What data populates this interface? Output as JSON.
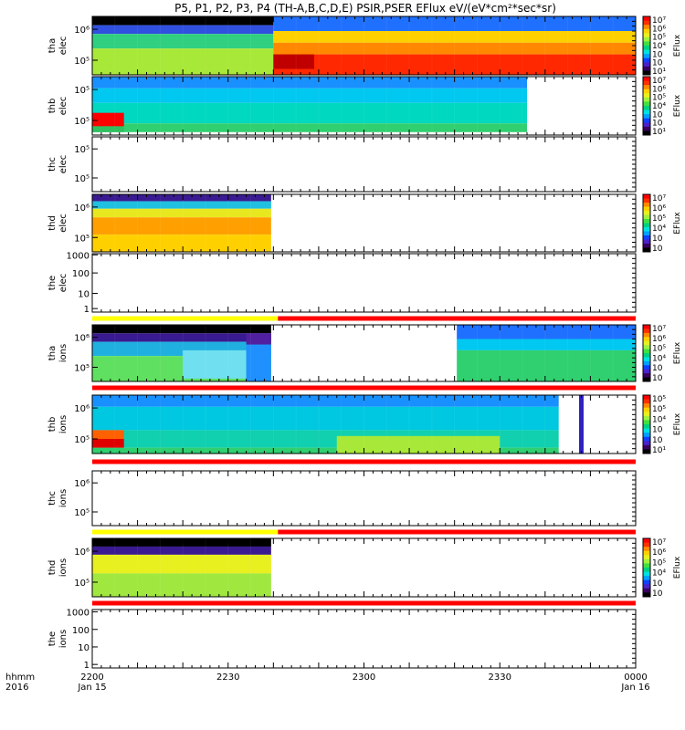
{
  "page": {
    "title_html": "P5, P1, P2, P3, P4 (TH-A,B,C,D,E) PSIR,PSER EFlux eV/(eV*cm²*sec*sr)"
  },
  "time_axis": {
    "label_line1": "hhmm",
    "label_line2": "2016",
    "ticks": [
      {
        "t": 0,
        "label": "2200",
        "sub": "Jan 15"
      },
      {
        "t": 30,
        "label": "2230",
        "sub": ""
      },
      {
        "t": 60,
        "label": "2300",
        "sub": ""
      },
      {
        "t": 90,
        "label": "2330",
        "sub": ""
      },
      {
        "t": 120,
        "label": "0000",
        "sub": "Jan 16"
      }
    ],
    "range_minutes": [
      0,
      120
    ]
  },
  "colorbar": {
    "label": "EFlux",
    "colors": [
      "#000000",
      "#3a0060",
      "#4a22c8",
      "#1040ff",
      "#00a0ff",
      "#00e0e0",
      "#00d080",
      "#40e040",
      "#a0f040",
      "#e8f020",
      "#ffd000",
      "#ff8800",
      "#ff3000",
      "#ff0000"
    ]
  },
  "chart_data": [
    {
      "type": "heatmap",
      "panel": "tha-elec",
      "ylabel": [
        "tha",
        "elec"
      ],
      "yticks": [
        "10⁶",
        "10⁵"
      ],
      "colorbar_ticks": [
        "10⁷",
        "10⁶",
        "10⁵",
        "10⁴",
        "10⁳",
        "10⁲",
        "10¹"
      ],
      "blocks": [
        {
          "t0": 0,
          "t1": 40,
          "f0": 0.0,
          "f1": 0.15,
          "c": "#000000"
        },
        {
          "t0": 0,
          "t1": 40,
          "f0": 0.15,
          "f1": 0.3,
          "c": "#3050e0"
        },
        {
          "t0": 0,
          "t1": 40,
          "f0": 0.3,
          "f1": 0.55,
          "c": "#30d080"
        },
        {
          "t0": 0,
          "t1": 40,
          "f0": 0.55,
          "f1": 1.0,
          "c": "#a8e838"
        },
        {
          "t0": 40,
          "t1": 120,
          "f0": 0.0,
          "f1": 0.25,
          "c": "#2070ff"
        },
        {
          "t0": 40,
          "t1": 120,
          "f0": 0.25,
          "f1": 0.45,
          "c": "#ffd000"
        },
        {
          "t0": 40,
          "t1": 120,
          "f0": 0.45,
          "f1": 0.65,
          "c": "#ff8800"
        },
        {
          "t0": 40,
          "t1": 120,
          "f0": 0.65,
          "f1": 1.0,
          "c": "#ff2800"
        },
        {
          "t0": 40,
          "t1": 49,
          "f0": 0.65,
          "f1": 0.9,
          "c": "#c00000"
        }
      ],
      "has_colorbar": true
    },
    {
      "type": "heatmap",
      "panel": "thb-elec",
      "ylabel": [
        "thb",
        "elec"
      ],
      "yticks": [
        "10⁵",
        "10⁵"
      ],
      "colorbar_ticks": [
        "10⁷",
        "10⁶",
        "10⁵",
        "10⁴",
        "10⁳",
        "10⁲",
        "10¹"
      ],
      "blocks": [
        {
          "t0": 0,
          "t1": 96,
          "f0": 0.0,
          "f1": 0.2,
          "c": "#1890ff"
        },
        {
          "t0": 0,
          "t1": 96,
          "f0": 0.2,
          "f1": 0.45,
          "c": "#00c8f0"
        },
        {
          "t0": 0,
          "t1": 96,
          "f0": 0.45,
          "f1": 0.8,
          "c": "#00d8c0"
        },
        {
          "t0": 0,
          "t1": 96,
          "f0": 0.8,
          "f1": 0.95,
          "c": "#30d070"
        },
        {
          "t0": 0,
          "t1": 7,
          "f0": 0.62,
          "f1": 0.85,
          "c": "#ff0000"
        },
        {
          "t0": 0,
          "t1": 7,
          "f0": 0.85,
          "f1": 0.95,
          "c": "#30c060"
        }
      ],
      "has_colorbar": true
    },
    {
      "type": "heatmap",
      "panel": "thc-elec",
      "ylabel": [
        "thc",
        "elec"
      ],
      "yticks": [
        "10⁵",
        "10⁵"
      ],
      "blocks": [],
      "has_colorbar": false
    },
    {
      "type": "heatmap",
      "panel": "thd-elec",
      "ylabel": [
        "thd",
        "elec"
      ],
      "yticks": [
        "10⁶",
        "10⁵"
      ],
      "colorbar_ticks": [
        "10⁷",
        "10⁶",
        "10⁵",
        "10⁴",
        "10⁳",
        "10⁲"
      ],
      "blocks": [
        {
          "t0": 0,
          "t1": 39.5,
          "f0": 0.0,
          "f1": 0.12,
          "c": "#3a1a90"
        },
        {
          "t0": 0,
          "t1": 39.5,
          "f0": 0.12,
          "f1": 0.25,
          "c": "#20c0e0"
        },
        {
          "t0": 0,
          "t1": 39.5,
          "f0": 0.25,
          "f1": 0.4,
          "c": "#e8e820"
        },
        {
          "t0": 0,
          "t1": 39.5,
          "f0": 0.4,
          "f1": 0.7,
          "c": "#ffa000"
        },
        {
          "t0": 0,
          "t1": 39.5,
          "f0": 0.7,
          "f1": 1.0,
          "c": "#ffd000"
        }
      ],
      "has_colorbar": true
    },
    {
      "type": "heatmap",
      "panel": "the-elec",
      "ylabel": [
        "the",
        "elec"
      ],
      "yticks": [
        "1000",
        "100",
        "10",
        "1"
      ],
      "blocks": [],
      "has_colorbar": false,
      "status_bar": [
        {
          "t0": 0,
          "t1": 41,
          "c": "#ffff00"
        },
        {
          "t0": 41,
          "t1": 120,
          "c": "#ff0000"
        }
      ]
    },
    {
      "type": "heatmap",
      "panel": "tha-ions",
      "ylabel": [
        "tha",
        "ions"
      ],
      "yticks": [
        "10⁶",
        "10⁵"
      ],
      "colorbar_ticks": [
        "10⁷",
        "10⁶",
        "10⁵",
        "10⁴",
        "10⁳",
        "10⁲"
      ],
      "blocks": [
        {
          "t0": 0,
          "t1": 39.5,
          "f0": 0.0,
          "f1": 0.15,
          "c": "#000000"
        },
        {
          "t0": 0,
          "t1": 39.5,
          "f0": 0.15,
          "f1": 0.3,
          "c": "#3a1a90"
        },
        {
          "t0": 0,
          "t1": 39.5,
          "f0": 0.3,
          "f1": 0.55,
          "c": "#20b0e0"
        },
        {
          "t0": 0,
          "t1": 39.5,
          "f0": 0.55,
          "f1": 1.0,
          "c": "#60e060"
        },
        {
          "t0": 20,
          "t1": 34,
          "f0": 0.45,
          "f1": 0.95,
          "c": "#70e0f0"
        },
        {
          "t0": 34,
          "t1": 39.5,
          "f0": 0.15,
          "f1": 0.35,
          "c": "#5020a0"
        },
        {
          "t0": 34,
          "t1": 39.5,
          "f0": 0.35,
          "f1": 1.0,
          "c": "#2090ff"
        },
        {
          "t0": 80.5,
          "t1": 120,
          "f0": 0.0,
          "f1": 0.25,
          "c": "#2070ff"
        },
        {
          "t0": 80.5,
          "t1": 120,
          "f0": 0.25,
          "f1": 0.45,
          "c": "#00c8f0"
        },
        {
          "t0": 80.5,
          "t1": 120,
          "f0": 0.45,
          "f1": 1.0,
          "c": "#30d070"
        }
      ],
      "has_colorbar": true,
      "status_bar": [
        {
          "t0": 0,
          "t1": 120,
          "c": "#ff0000"
        }
      ]
    },
    {
      "type": "heatmap",
      "panel": "thb-ions",
      "ylabel": [
        "thb",
        "ions"
      ],
      "yticks": [
        "10⁶",
        "10⁵"
      ],
      "colorbar_ticks": [
        "10⁵",
        "10⁵",
        "10⁴",
        "10⁳",
        "10⁲",
        "10¹"
      ],
      "blocks": [
        {
          "t0": 0,
          "t1": 103,
          "f0": 0.0,
          "f1": 0.2,
          "c": "#1890ff"
        },
        {
          "t0": 0,
          "t1": 103,
          "f0": 0.2,
          "f1": 0.6,
          "c": "#00c8e0"
        },
        {
          "t0": 0,
          "t1": 103,
          "f0": 0.6,
          "f1": 0.9,
          "c": "#10d0b0"
        },
        {
          "t0": 0,
          "t1": 103,
          "f0": 0.9,
          "f1": 1.0,
          "c": "#30d070"
        },
        {
          "t0": 54,
          "t1": 90,
          "f0": 0.7,
          "f1": 1.0,
          "c": "#a8e838"
        },
        {
          "t0": 0,
          "t1": 7,
          "f0": 0.6,
          "f1": 0.75,
          "c": "#ff6000"
        },
        {
          "t0": 0,
          "t1": 7,
          "f0": 0.75,
          "f1": 0.9,
          "c": "#e00000"
        },
        {
          "t0": 107.5,
          "t1": 108.5,
          "f0": 0.0,
          "f1": 1.0,
          "c": "#3020c0"
        }
      ],
      "has_colorbar": true,
      "status_bar": [
        {
          "t0": 0,
          "t1": 120,
          "c": "#ff0000"
        }
      ]
    },
    {
      "type": "heatmap",
      "panel": "thc-ions",
      "ylabel": [
        "thc",
        "ions"
      ],
      "yticks": [
        "10⁶",
        "10⁵"
      ],
      "blocks": [],
      "has_colorbar": false,
      "status_bar": [
        {
          "t0": 0,
          "t1": 41,
          "c": "#ffff00"
        },
        {
          "t0": 41,
          "t1": 120,
          "c": "#ff0000"
        }
      ]
    },
    {
      "type": "heatmap",
      "panel": "thd-ions",
      "ylabel": [
        "thd",
        "ions"
      ],
      "yticks": [
        "10⁶",
        "10⁵"
      ],
      "colorbar_ticks": [
        "10⁷",
        "10⁶",
        "10⁵",
        "10⁴",
        "10⁳",
        "10⁲"
      ],
      "blocks": [
        {
          "t0": 0,
          "t1": 39.5,
          "f0": 0.0,
          "f1": 0.14,
          "c": "#000000"
        },
        {
          "t0": 0,
          "t1": 39.5,
          "f0": 0.14,
          "f1": 0.28,
          "c": "#3a1a90"
        },
        {
          "t0": 0,
          "t1": 39.5,
          "f0": 0.28,
          "f1": 0.6,
          "c": "#e8f020"
        },
        {
          "t0": 0,
          "t1": 39.5,
          "f0": 0.6,
          "f1": 1.0,
          "c": "#a0e840"
        }
      ],
      "has_colorbar": true,
      "status_bar": [
        {
          "t0": 0,
          "t1": 120,
          "c": "#ff0000"
        }
      ]
    },
    {
      "type": "heatmap",
      "panel": "the-ions",
      "ylabel": [
        "the",
        "ions"
      ],
      "yticks": [
        "1000",
        "100",
        "10",
        "1"
      ],
      "blocks": [],
      "has_colorbar": false
    }
  ]
}
